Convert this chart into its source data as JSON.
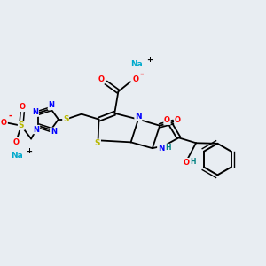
{
  "bg_color": "#e8edf2",
  "bond_color": "#000000",
  "atom_colors": {
    "N": "#0000ff",
    "O": "#ff0000",
    "S": "#b8b800",
    "Na": "#00aacc",
    "C": "#000000",
    "H": "#008080",
    "minus": "#ff0000",
    "plus": "#000000"
  },
  "figsize": [
    3.0,
    3.0
  ],
  "dpi": 100
}
